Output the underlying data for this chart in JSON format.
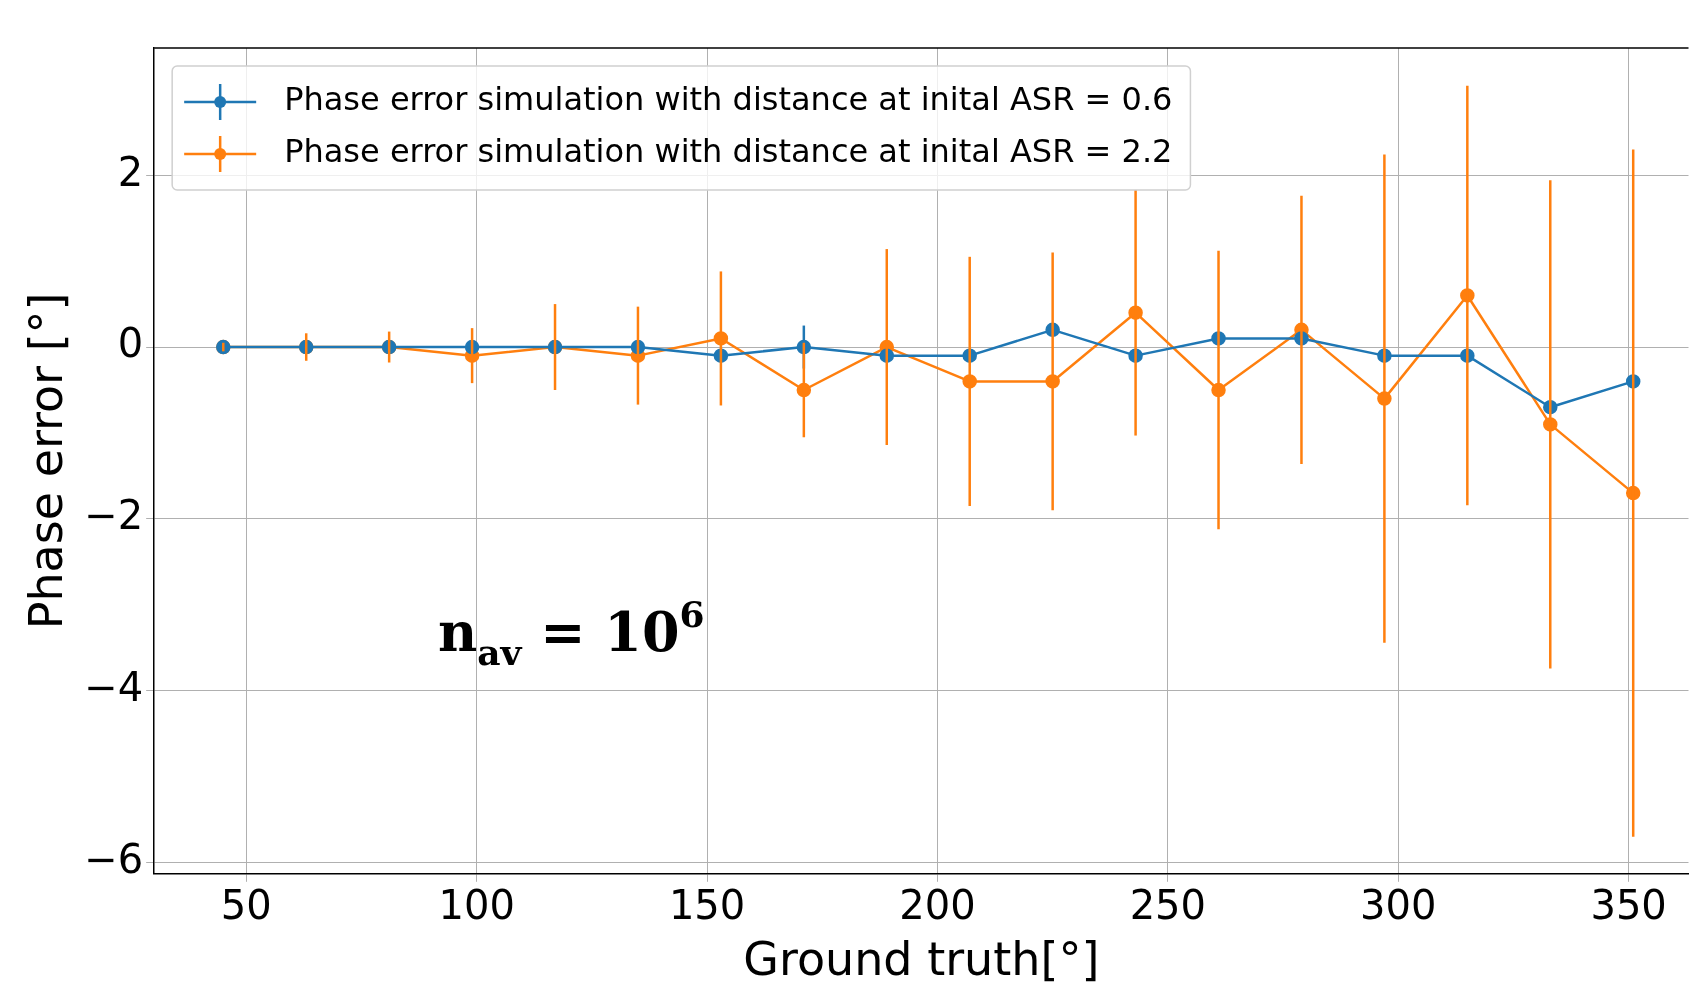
{
  "chart_data": {
    "type": "line",
    "xlabel": "Ground truth[°]",
    "ylabel": "Phase error [°]",
    "x": [
      45,
      63,
      81,
      99,
      117,
      135,
      153,
      171,
      189,
      207,
      225,
      243,
      261,
      279,
      297,
      315,
      333,
      351
    ],
    "series": [
      {
        "name": "Phase error simulation with distance at inital ASR = 0.6",
        "color": "#1f77b4",
        "values": [
          0,
          0,
          0,
          0,
          0,
          0,
          -0.1,
          0,
          -0.1,
          -0.1,
          0.2,
          -0.1,
          0.1,
          0.1,
          -0.1,
          -0.1,
          -0.7,
          -0.4
        ],
        "errors": [
          0.05,
          null,
          null,
          null,
          null,
          null,
          null,
          0.25,
          null,
          null,
          null,
          null,
          null,
          null,
          null,
          null,
          null,
          null
        ]
      },
      {
        "name": "Phase error simulation with distance at inital ASR = 2.2",
        "color": "#ff7f0e",
        "values": [
          0,
          0,
          0,
          -0.1,
          0,
          -0.1,
          0.1,
          -0.5,
          0,
          -0.4,
          -0.4,
          0.4,
          -0.5,
          0.2,
          -0.6,
          0.6,
          -0.9,
          -1.7
        ],
        "errors": [
          0.05,
          0.16,
          0.18,
          0.32,
          0.5,
          0.57,
          0.78,
          0.55,
          1.14,
          1.45,
          1.5,
          1.43,
          1.62,
          1.56,
          2.84,
          2.44,
          2.84,
          4.0
        ]
      }
    ],
    "xlim": [
      30,
      363
    ],
    "ylim": [
      -6.13,
      3.48
    ],
    "xticks": [
      50,
      100,
      150,
      200,
      250,
      300,
      350
    ],
    "yticks": [
      -6,
      -4,
      -2,
      0,
      2
    ],
    "grid": true,
    "legend": "top left",
    "marker": "circle",
    "line_style": "solid",
    "annotations": [
      "n$_{av}$ = 10$^{6}$"
    ]
  }
}
